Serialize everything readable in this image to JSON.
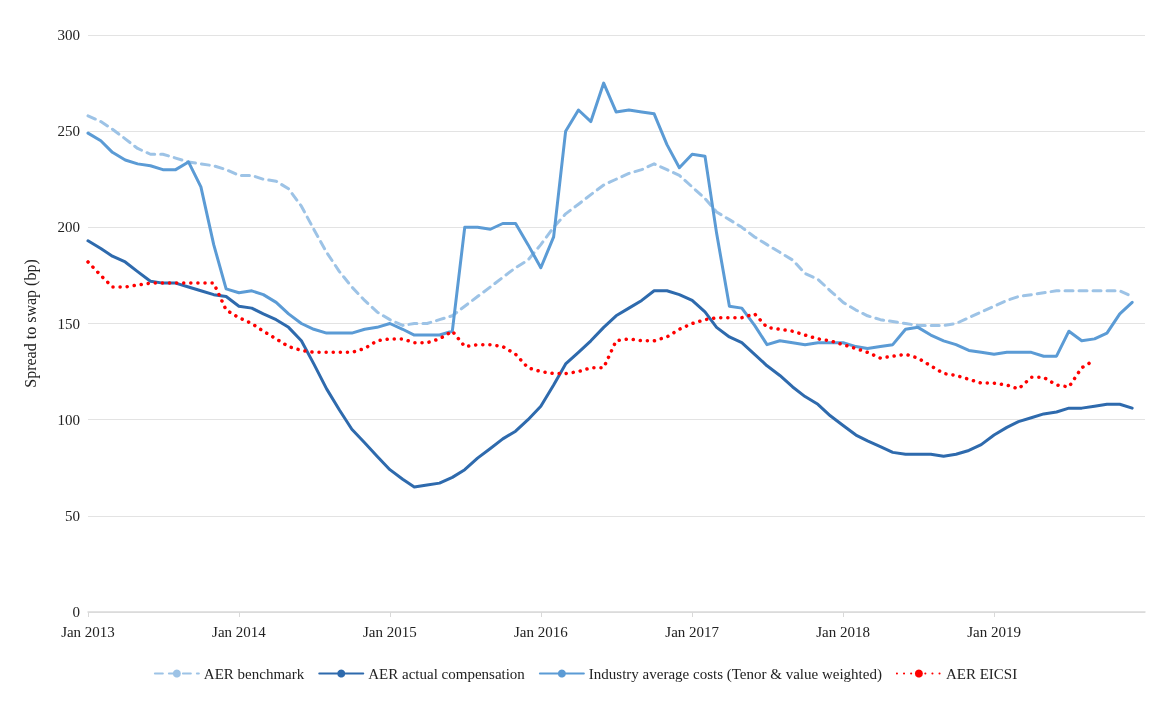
{
  "chart_data": {
    "type": "line",
    "ylabel": "Spread to swap (bp)",
    "x": [
      "2013-01",
      "2013-02",
      "2013-03",
      "2013-04",
      "2013-05",
      "2013-06",
      "2013-07",
      "2013-08",
      "2013-09",
      "2013-10",
      "2013-11",
      "2013-12",
      "2014-01",
      "2014-02",
      "2014-03",
      "2014-04",
      "2014-05",
      "2014-06",
      "2014-07",
      "2014-08",
      "2014-09",
      "2014-10",
      "2014-11",
      "2014-12",
      "2015-01",
      "2015-02",
      "2015-03",
      "2015-04",
      "2015-05",
      "2015-06",
      "2015-07",
      "2015-08",
      "2015-09",
      "2015-10",
      "2015-11",
      "2015-12",
      "2016-01",
      "2016-02",
      "2016-03",
      "2016-04",
      "2016-05",
      "2016-06",
      "2016-07",
      "2016-08",
      "2016-09",
      "2016-10",
      "2016-11",
      "2016-12",
      "2017-01",
      "2017-02",
      "2017-03",
      "2017-04",
      "2017-05",
      "2017-06",
      "2017-07",
      "2017-08",
      "2017-09",
      "2017-10",
      "2017-11",
      "2017-12",
      "2018-01",
      "2018-02",
      "2018-03",
      "2018-04",
      "2018-05",
      "2018-06",
      "2018-07",
      "2018-08",
      "2018-09",
      "2018-10",
      "2018-11",
      "2018-12",
      "2019-01",
      "2019-02",
      "2019-03",
      "2019-04",
      "2019-05",
      "2019-06",
      "2019-07",
      "2019-08",
      "2019-09",
      "2019-10",
      "2019-11",
      "2019-12"
    ],
    "series": [
      {
        "name": "AER benchmark",
        "color": "#9dc3e6",
        "line_style": "dashed",
        "values": [
          258,
          255,
          251,
          246,
          241,
          238,
          238,
          236,
          234,
          233,
          232,
          230,
          227,
          227,
          225,
          224,
          220,
          211,
          199,
          187,
          177,
          169,
          162,
          156,
          152,
          149,
          150,
          150,
          152,
          154,
          159,
          164,
          169,
          174,
          179,
          183,
          191,
          200,
          207,
          212,
          217,
          222,
          225,
          228,
          230,
          233,
          230,
          227,
          221,
          215,
          208,
          204,
          200,
          195,
          191,
          187,
          183,
          176,
          173,
          167,
          161,
          157,
          154,
          152,
          151,
          150,
          149,
          149,
          149,
          150,
          153,
          156,
          159,
          162,
          164,
          165,
          166,
          167,
          167,
          167,
          167,
          167,
          167,
          164
        ]
      },
      {
        "name": "AER actual compensation",
        "color": "#2e6aad",
        "line_style": "solid",
        "values": [
          193,
          189,
          185,
          182,
          177,
          172,
          171,
          171,
          169,
          167,
          165,
          164,
          159,
          158,
          155,
          152,
          148,
          141,
          129,
          116,
          105,
          95,
          88,
          81,
          74,
          69,
          65,
          66,
          67,
          70,
          74,
          80,
          85,
          90,
          94,
          100,
          107,
          118,
          129,
          135,
          141,
          148,
          154,
          158,
          162,
          167,
          167,
          165,
          162,
          156,
          148,
          143,
          140,
          134,
          128,
          123,
          117,
          112,
          108,
          102,
          97,
          92,
          89,
          86,
          83,
          82,
          82,
          82,
          81,
          82,
          84,
          87,
          92,
          96,
          99,
          101,
          103,
          104,
          106,
          106,
          107,
          108,
          108,
          106
        ]
      },
      {
        "name": "Industry average costs (Tenor & value weighted)",
        "color": "#5b9bd5",
        "line_style": "solid",
        "values": [
          249,
          245,
          239,
          235,
          233,
          232,
          230,
          230,
          234,
          221,
          191,
          168,
          166,
          167,
          165,
          161,
          155,
          150,
          147,
          145,
          145,
          145,
          147,
          148,
          150,
          147,
          144,
          144,
          144,
          146,
          200,
          200,
          199,
          202,
          202,
          191,
          179,
          195,
          250,
          261,
          255,
          275,
          260,
          261,
          260,
          259,
          243,
          231,
          238,
          237,
          197,
          159,
          158,
          149,
          139,
          141,
          140,
          139,
          140,
          140,
          140,
          138,
          137,
          138,
          139,
          147,
          148,
          144,
          141,
          139,
          136,
          135,
          134,
          135,
          135,
          135,
          133,
          133,
          146,
          141,
          142,
          145,
          155,
          161
        ]
      },
      {
        "name": "AER EICSI",
        "color": "#ff0000",
        "line_style": "dotted",
        "values": [
          182,
          175,
          169,
          169,
          170,
          171,
          171,
          171,
          171,
          171,
          171,
          157,
          153,
          150,
          146,
          142,
          138,
          136,
          135,
          135,
          135,
          135,
          137,
          141,
          142,
          142,
          140,
          140,
          142,
          146,
          138,
          139,
          139,
          138,
          134,
          127,
          125,
          124,
          124,
          125,
          127,
          127,
          141,
          142,
          141,
          141,
          143,
          147,
          150,
          152,
          153,
          153,
          153,
          155,
          148,
          147,
          146,
          144,
          142,
          141,
          139,
          137,
          135,
          132,
          133,
          134,
          132,
          128,
          124,
          123,
          121,
          119,
          119,
          118,
          116,
          122,
          122,
          118,
          117,
          127,
          131,
          null,
          null,
          null
        ]
      }
    ],
    "xlim": [
      "2013-01",
      "2020-01"
    ],
    "xticks": [
      {
        "value": "2013-01",
        "label": "Jan 2013"
      },
      {
        "value": "2014-01",
        "label": "Jan 2014"
      },
      {
        "value": "2015-01",
        "label": "Jan 2015"
      },
      {
        "value": "2016-01",
        "label": "Jan 2016"
      },
      {
        "value": "2017-01",
        "label": "Jan 2017"
      },
      {
        "value": "2018-01",
        "label": "Jan 2018"
      },
      {
        "value": "2019-01",
        "label": "Jan 2019"
      }
    ],
    "ylim": [
      0,
      300
    ],
    "yticks": [
      0,
      50,
      100,
      150,
      200,
      250,
      300
    ],
    "grid": "y",
    "legend": "bottom",
    "marker": "none"
  }
}
